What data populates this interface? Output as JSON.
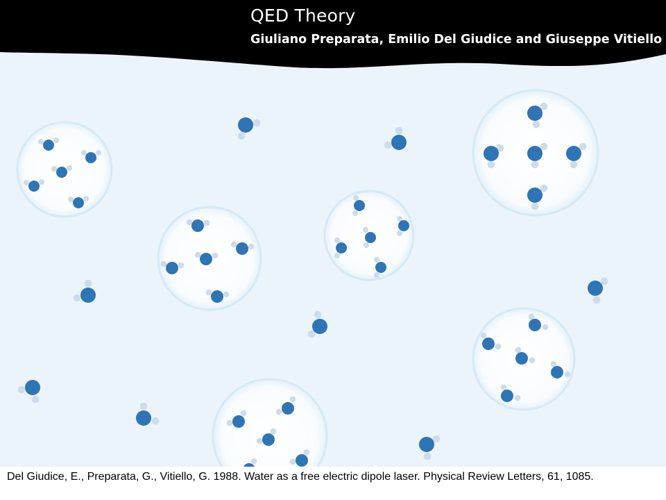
{
  "header": {
    "title": "QED Theory",
    "subtitle": "Giuliano Preparata, Emilio Del Giudice and Giuseppe Vitiello"
  },
  "reference": {
    "text": "Del Giudice, E., Preparata, G., Vitiello, G. 1988. Water as a free electric dipole laser. Physical Review Letters, 61, 1085."
  },
  "colors": {
    "header_band": "#000000",
    "water_background": "#eaf4fa",
    "domain_fill": "#f7fbfe",
    "oxygen": "#2f74b5",
    "hydrogen": "#cddbeb"
  },
  "icons": {
    "molecule": "water-molecule-icon",
    "domain": "coherence-domain-circle"
  }
}
